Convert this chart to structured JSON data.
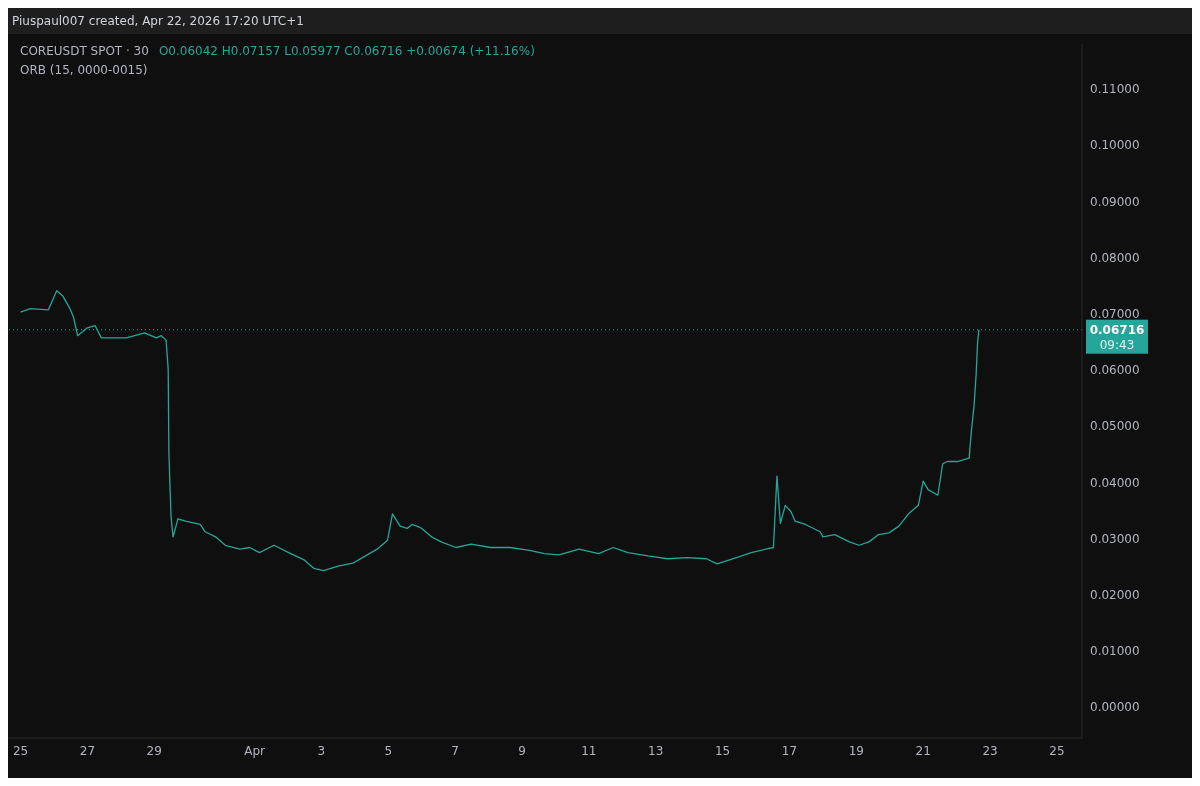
{
  "chart_data": {
    "type": "line",
    "title": "COREUSDT SPOT · 30",
    "annotations": [
      "Piuspaul007 created, Apr 22, 2026 17:20 UTC+1",
      "O0.06042 H0.07157 L0.05977 C0.06716 +0.00674 (+11.16%)",
      "ORB (15, 0000-0015)",
      "09:43"
    ],
    "x": [
      "2026-03-25T00:00",
      "2026-03-25T07:00",
      "2026-03-25T20:00",
      "2026-03-26T02:00",
      "2026-03-26T06:30",
      "2026-03-26T11:30",
      "2026-03-26T14:00",
      "2026-03-26T17:00",
      "2026-03-27T00:00",
      "2026-03-27T05:30",
      "2026-03-27T10:00",
      "2026-03-27T17:30",
      "2026-03-28T04:00",
      "2026-03-28T17:00",
      "2026-03-29T01:30",
      "2026-03-29T05:00",
      "2026-03-29T08:30",
      "2026-03-29T10:00",
      "2026-03-29T10:30",
      "2026-03-29T12:00",
      "2026-03-29T13:30",
      "2026-03-29T17:00",
      "2026-03-29T22:30",
      "2026-03-30T09:00",
      "2026-03-30T12:30",
      "2026-03-30T20:00",
      "2026-03-31T03:00",
      "2026-03-31T13:30",
      "2026-03-31T20:30",
      "2026-04-01T03:30",
      "2026-04-01T14:00",
      "2026-04-02T00:30",
      "2026-04-02T11:30",
      "2026-04-02T18:30",
      "2026-04-03T01:30",
      "2026-04-03T12:00",
      "2026-04-03T22:30",
      "2026-04-04T05:30",
      "2026-04-04T16:00",
      "2026-04-04T23:30",
      "2026-04-05T03:00",
      "2026-04-05T08:30",
      "2026-04-05T13:30",
      "2026-04-05T17:00",
      "2026-04-05T20:30",
      "2026-04-06T00:00",
      "2026-04-06T07:00",
      "2026-04-06T14:00",
      "2026-04-07T00:30",
      "2026-04-07T11:30",
      "2026-04-08T01:30",
      "2026-04-08T15:30",
      "2026-04-09T05:30",
      "2026-04-09T16:00",
      "2026-04-10T02:30",
      "2026-04-10T17:00",
      "2026-04-11T07:00",
      "2026-04-11T17:30",
      "2026-04-12T04:00",
      "2026-04-12T18:30",
      "2026-04-13T08:30",
      "2026-04-13T22:30",
      "2026-04-14T12:30",
      "2026-04-14T20:00",
      "2026-04-15T10:00",
      "2026-04-15T20:30",
      "2026-04-16T07:00",
      "2026-04-16T12:30",
      "2026-04-16T15:00",
      "2026-04-16T17:30",
      "2026-04-16T21:00",
      "2026-04-17T01:00",
      "2026-04-17T04:00",
      "2026-04-17T11:30",
      "2026-04-17T22:00",
      "2026-04-18T00:00",
      "2026-04-18T08:30",
      "2026-04-18T19:00",
      "2026-04-19T02:00",
      "2026-04-19T09:00",
      "2026-04-19T16:00",
      "2026-04-19T23:30",
      "2026-04-20T06:30",
      "2026-04-20T13:30",
      "2026-04-20T20:30",
      "2026-04-21T00:00",
      "2026-04-21T03:30",
      "2026-04-21T10:30",
      "2026-04-21T14:00",
      "2026-04-21T17:30",
      "2026-04-22T00:30",
      "2026-04-22T09:00",
      "2026-04-22T10:30",
      "2026-04-22T12:30",
      "2026-04-22T14:00",
      "2026-04-22T15:00",
      "2026-04-22T16:00"
    ],
    "series": [
      {
        "color": "#26a69a",
        "values": [
          0.0703,
          0.0709,
          0.0707,
          0.0741,
          0.0731,
          0.0709,
          0.0694,
          0.0661,
          0.0675,
          0.0679,
          0.0657,
          0.0657,
          0.0657,
          0.0666,
          0.0657,
          0.0661,
          0.0653,
          0.0601,
          0.0452,
          0.034,
          0.0303,
          0.0335,
          0.0331,
          0.0325,
          0.0312,
          0.0303,
          0.0288,
          0.0281,
          0.0284,
          0.0275,
          0.0288,
          0.0275,
          0.0262,
          0.0247,
          0.0243,
          0.0251,
          0.0256,
          0.0266,
          0.0281,
          0.0297,
          0.0344,
          0.0322,
          0.0318,
          0.0325,
          0.0322,
          0.0318,
          0.0303,
          0.0294,
          0.0284,
          0.029,
          0.0284,
          0.0284,
          0.0279,
          0.0273,
          0.0271,
          0.0281,
          0.0273,
          0.0284,
          0.0275,
          0.0269,
          0.0264,
          0.0266,
          0.0264,
          0.0255,
          0.0266,
          0.0275,
          0.0281,
          0.0284,
          0.0411,
          0.0327,
          0.0359,
          0.0348,
          0.0331,
          0.0325,
          0.0312,
          0.0303,
          0.0307,
          0.0294,
          0.0288,
          0.0294,
          0.0307,
          0.031,
          0.0322,
          0.0344,
          0.0359,
          0.0402,
          0.0387,
          0.0377,
          0.0433,
          0.0437,
          0.0437,
          0.0443,
          0.0489,
          0.0536,
          0.0592,
          0.0647,
          0.06716
        ]
      }
    ],
    "xlim": [
      "2026-03-24T15:00",
      "2026-04-25T18:00"
    ],
    "xticks": [
      {
        "value": "2026-03-25",
        "label": "25"
      },
      {
        "value": "2026-03-27",
        "label": "27"
      },
      {
        "value": "2026-03-29",
        "label": "29"
      },
      {
        "value": "2026-04-01",
        "label": "Apr"
      },
      {
        "value": "2026-04-03",
        "label": "3"
      },
      {
        "value": "2026-04-05",
        "label": "5"
      },
      {
        "value": "2026-04-07",
        "label": "7"
      },
      {
        "value": "2026-04-09",
        "label": "9"
      },
      {
        "value": "2026-04-11",
        "label": "11"
      },
      {
        "value": "2026-04-13",
        "label": "13"
      },
      {
        "value": "2026-04-15",
        "label": "15"
      },
      {
        "value": "2026-04-17",
        "label": "17"
      },
      {
        "value": "2026-04-19",
        "label": "19"
      },
      {
        "value": "2026-04-21",
        "label": "21"
      },
      {
        "value": "2026-04-23",
        "label": "23"
      },
      {
        "value": "2026-04-25",
        "label": "25"
      }
    ],
    "ylim": [
      -0.0055,
      0.118
    ],
    "yticks": [
      {
        "value": 0,
        "label": "0.00000"
      },
      {
        "value": 0.01,
        "label": "0.01000"
      },
      {
        "value": 0.02,
        "label": "0.02000"
      },
      {
        "value": 0.03,
        "label": "0.03000"
      },
      {
        "value": 0.04,
        "label": "0.04000"
      },
      {
        "value": 0.05,
        "label": "0.05000"
      },
      {
        "value": 0.06,
        "label": "0.06000"
      },
      {
        "value": 0.07,
        "label": "0.07000"
      },
      {
        "value": 0.08,
        "label": "0.08000"
      },
      {
        "value": 0.09,
        "label": "0.09000"
      },
      {
        "value": 0.1,
        "label": "0.10000"
      },
      {
        "value": 0.11,
        "label": "0.11000"
      }
    ],
    "ref_lines": [
      {
        "axis": "y",
        "value": 0.06716,
        "label": "0.06716",
        "color": "#26a69a",
        "line_style": "dotted"
      }
    ],
    "line_style": "solid",
    "marker": "none"
  }
}
